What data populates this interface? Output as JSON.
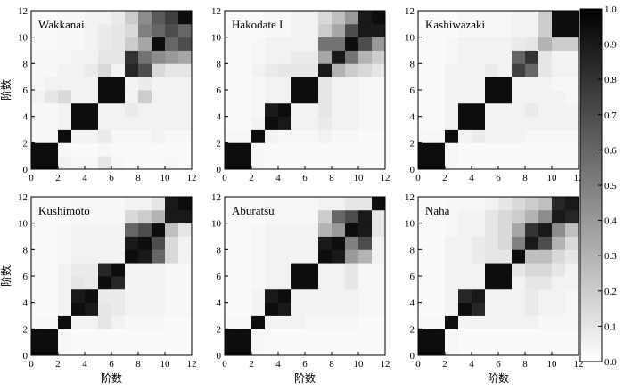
{
  "chart_data": {
    "type": "heatmap",
    "axis_label": "阶数",
    "x_ticks": [
      0,
      2,
      4,
      6,
      8,
      10,
      12
    ],
    "y_ticks": [
      0,
      2,
      4,
      6,
      8,
      10,
      12
    ],
    "xlim": [
      0,
      12
    ],
    "ylim": [
      0,
      12
    ],
    "colorbar": {
      "ticks": [
        "0.0",
        "0.1",
        "0.2",
        "0.3",
        "0.4",
        "0.5",
        "0.6",
        "0.7",
        "0.8",
        "0.9",
        "1.0"
      ],
      "range": [
        0,
        1
      ],
      "colormap": "white-to-black"
    },
    "panels": [
      {
        "title": "Wakkanai",
        "grid": [
          [
            0.95,
            0.95,
            0.05,
            0.03,
            0.03,
            0.1,
            0.03,
            0.02,
            0.02,
            0.02,
            0.03,
            0.02
          ],
          [
            0.95,
            0.95,
            0.03,
            0.02,
            0.02,
            0.03,
            0.02,
            0.02,
            0.02,
            0.02,
            0.02,
            0.02
          ],
          [
            0.03,
            0.03,
            0.95,
            0.05,
            0.05,
            0.08,
            0.03,
            0.03,
            0.03,
            0.05,
            0.03,
            0.03
          ],
          [
            0.03,
            0.03,
            0.05,
            0.95,
            0.95,
            0.05,
            0.05,
            0.05,
            0.05,
            0.05,
            0.05,
            0.05
          ],
          [
            0.03,
            0.03,
            0.05,
            0.95,
            0.95,
            0.05,
            0.05,
            0.08,
            0.05,
            0.05,
            0.05,
            0.05
          ],
          [
            0.05,
            0.1,
            0.15,
            0.05,
            0.05,
            0.95,
            0.95,
            0.05,
            0.2,
            0.05,
            0.05,
            0.05
          ],
          [
            0.03,
            0.05,
            0.05,
            0.05,
            0.05,
            0.95,
            0.95,
            0.05,
            0.08,
            0.05,
            0.05,
            0.05
          ],
          [
            0.03,
            0.03,
            0.05,
            0.05,
            0.08,
            0.15,
            0.05,
            0.85,
            0.7,
            0.15,
            0.1,
            0.1
          ],
          [
            0.03,
            0.03,
            0.03,
            0.05,
            0.05,
            0.1,
            0.1,
            0.8,
            0.55,
            0.45,
            0.4,
            0.35
          ],
          [
            0.02,
            0.02,
            0.03,
            0.03,
            0.05,
            0.08,
            0.1,
            0.2,
            0.35,
            0.95,
            0.6,
            0.7
          ],
          [
            0.02,
            0.02,
            0.03,
            0.03,
            0.05,
            0.08,
            0.1,
            0.15,
            0.5,
            0.6,
            0.7,
            0.6
          ],
          [
            0.02,
            0.02,
            0.03,
            0.03,
            0.05,
            0.05,
            0.08,
            0.2,
            0.45,
            0.65,
            0.75,
            0.95
          ]
        ]
      },
      {
        "title": "Hakodate I",
        "grid": [
          [
            0.95,
            0.95,
            0.03,
            0.02,
            0.02,
            0.02,
            0.02,
            0.02,
            0.02,
            0.02,
            0.02,
            0.02
          ],
          [
            0.95,
            0.95,
            0.03,
            0.02,
            0.02,
            0.02,
            0.02,
            0.02,
            0.02,
            0.02,
            0.02,
            0.02
          ],
          [
            0.03,
            0.03,
            0.95,
            0.05,
            0.03,
            0.03,
            0.03,
            0.05,
            0.03,
            0.03,
            0.02,
            0.02
          ],
          [
            0.02,
            0.02,
            0.05,
            0.95,
            0.9,
            0.05,
            0.05,
            0.08,
            0.05,
            0.05,
            0.03,
            0.03
          ],
          [
            0.02,
            0.02,
            0.03,
            0.9,
            0.95,
            0.05,
            0.05,
            0.1,
            0.05,
            0.05,
            0.03,
            0.03
          ],
          [
            0.02,
            0.02,
            0.03,
            0.05,
            0.05,
            0.95,
            0.95,
            0.1,
            0.05,
            0.05,
            0.03,
            0.03
          ],
          [
            0.02,
            0.02,
            0.03,
            0.05,
            0.05,
            0.95,
            0.95,
            0.1,
            0.05,
            0.05,
            0.03,
            0.03
          ],
          [
            0.02,
            0.02,
            0.05,
            0.08,
            0.1,
            0.1,
            0.1,
            0.9,
            0.3,
            0.2,
            0.15,
            0.1
          ],
          [
            0.02,
            0.02,
            0.03,
            0.05,
            0.05,
            0.08,
            0.08,
            0.35,
            0.9,
            0.55,
            0.3,
            0.2
          ],
          [
            0.02,
            0.02,
            0.03,
            0.05,
            0.05,
            0.05,
            0.05,
            0.55,
            0.55,
            0.95,
            0.7,
            0.4
          ],
          [
            0.02,
            0.02,
            0.02,
            0.03,
            0.03,
            0.05,
            0.05,
            0.2,
            0.35,
            0.7,
            0.9,
            0.9
          ],
          [
            0.02,
            0.02,
            0.02,
            0.03,
            0.03,
            0.05,
            0.05,
            0.15,
            0.25,
            0.4,
            0.9,
            0.95
          ]
        ]
      },
      {
        "title": "Kashiwazaki",
        "grid": [
          [
            0.95,
            0.95,
            0.03,
            0.02,
            0.02,
            0.02,
            0.02,
            0.02,
            0.02,
            0.02,
            0.02,
            0.02
          ],
          [
            0.95,
            0.95,
            0.03,
            0.02,
            0.02,
            0.02,
            0.02,
            0.02,
            0.02,
            0.02,
            0.02,
            0.02
          ],
          [
            0.03,
            0.03,
            0.95,
            0.05,
            0.08,
            0.05,
            0.05,
            0.05,
            0.03,
            0.03,
            0.03,
            0.03
          ],
          [
            0.02,
            0.02,
            0.05,
            0.95,
            0.95,
            0.05,
            0.05,
            0.05,
            0.05,
            0.05,
            0.05,
            0.05
          ],
          [
            0.02,
            0.02,
            0.05,
            0.95,
            0.95,
            0.05,
            0.05,
            0.05,
            0.08,
            0.05,
            0.05,
            0.05
          ],
          [
            0.02,
            0.02,
            0.05,
            0.05,
            0.05,
            0.95,
            0.95,
            0.05,
            0.05,
            0.05,
            0.05,
            0.03
          ],
          [
            0.02,
            0.02,
            0.05,
            0.05,
            0.05,
            0.95,
            0.95,
            0.05,
            0.05,
            0.05,
            0.03,
            0.03
          ],
          [
            0.02,
            0.02,
            0.05,
            0.05,
            0.05,
            0.08,
            0.05,
            0.75,
            0.6,
            0.1,
            0.05,
            0.05
          ],
          [
            0.02,
            0.02,
            0.03,
            0.05,
            0.05,
            0.05,
            0.05,
            0.6,
            0.8,
            0.1,
            0.05,
            0.05
          ],
          [
            0.02,
            0.02,
            0.03,
            0.05,
            0.05,
            0.05,
            0.05,
            0.08,
            0.1,
            0.3,
            0.2,
            0.2
          ],
          [
            0.02,
            0.02,
            0.02,
            0.03,
            0.03,
            0.03,
            0.03,
            0.05,
            0.05,
            0.2,
            0.95,
            0.95
          ],
          [
            0.02,
            0.02,
            0.02,
            0.03,
            0.03,
            0.03,
            0.03,
            0.05,
            0.05,
            0.2,
            0.95,
            0.95
          ]
        ]
      },
      {
        "title": "Kushimoto",
        "grid": [
          [
            0.95,
            0.95,
            0.03,
            0.02,
            0.02,
            0.02,
            0.02,
            0.02,
            0.02,
            0.02,
            0.02,
            0.02
          ],
          [
            0.95,
            0.95,
            0.03,
            0.02,
            0.02,
            0.02,
            0.02,
            0.02,
            0.02,
            0.02,
            0.02,
            0.02
          ],
          [
            0.03,
            0.03,
            0.95,
            0.05,
            0.05,
            0.1,
            0.05,
            0.03,
            0.03,
            0.03,
            0.02,
            0.02
          ],
          [
            0.02,
            0.02,
            0.05,
            0.95,
            0.9,
            0.1,
            0.08,
            0.05,
            0.05,
            0.05,
            0.03,
            0.03
          ],
          [
            0.02,
            0.02,
            0.05,
            0.9,
            0.95,
            0.08,
            0.08,
            0.05,
            0.05,
            0.05,
            0.03,
            0.03
          ],
          [
            0.02,
            0.02,
            0.05,
            0.1,
            0.08,
            0.95,
            0.85,
            0.05,
            0.05,
            0.05,
            0.03,
            0.03
          ],
          [
            0.02,
            0.02,
            0.05,
            0.08,
            0.08,
            0.85,
            0.95,
            0.05,
            0.05,
            0.05,
            0.03,
            0.03
          ],
          [
            0.02,
            0.02,
            0.03,
            0.05,
            0.05,
            0.05,
            0.05,
            0.95,
            0.9,
            0.6,
            0.15,
            0.05
          ],
          [
            0.02,
            0.02,
            0.03,
            0.05,
            0.05,
            0.05,
            0.05,
            0.9,
            0.95,
            0.7,
            0.15,
            0.05
          ],
          [
            0.02,
            0.02,
            0.03,
            0.05,
            0.05,
            0.05,
            0.05,
            0.6,
            0.7,
            0.95,
            0.25,
            0.1
          ],
          [
            0.02,
            0.02,
            0.02,
            0.03,
            0.03,
            0.03,
            0.03,
            0.15,
            0.2,
            0.3,
            0.9,
            0.9
          ],
          [
            0.02,
            0.02,
            0.02,
            0.03,
            0.03,
            0.03,
            0.03,
            0.05,
            0.05,
            0.1,
            0.9,
            0.95
          ]
        ]
      },
      {
        "title": "Aburatsu",
        "grid": [
          [
            0.95,
            0.95,
            0.03,
            0.02,
            0.02,
            0.02,
            0.02,
            0.02,
            0.02,
            0.02,
            0.02,
            0.02
          ],
          [
            0.95,
            0.95,
            0.03,
            0.02,
            0.02,
            0.02,
            0.02,
            0.02,
            0.02,
            0.02,
            0.02,
            0.02
          ],
          [
            0.03,
            0.03,
            0.95,
            0.05,
            0.05,
            0.05,
            0.03,
            0.03,
            0.03,
            0.03,
            0.02,
            0.02
          ],
          [
            0.02,
            0.02,
            0.05,
            0.95,
            0.9,
            0.05,
            0.05,
            0.05,
            0.05,
            0.05,
            0.03,
            0.03
          ],
          [
            0.02,
            0.02,
            0.05,
            0.9,
            0.95,
            0.05,
            0.05,
            0.05,
            0.05,
            0.05,
            0.03,
            0.03
          ],
          [
            0.02,
            0.02,
            0.03,
            0.05,
            0.05,
            0.95,
            0.95,
            0.05,
            0.05,
            0.1,
            0.03,
            0.03
          ],
          [
            0.02,
            0.02,
            0.03,
            0.05,
            0.05,
            0.95,
            0.95,
            0.05,
            0.05,
            0.1,
            0.03,
            0.03
          ],
          [
            0.02,
            0.02,
            0.03,
            0.05,
            0.05,
            0.05,
            0.05,
            0.95,
            0.9,
            0.4,
            0.3,
            0.05
          ],
          [
            0.02,
            0.02,
            0.03,
            0.05,
            0.05,
            0.05,
            0.05,
            0.9,
            0.95,
            0.5,
            0.7,
            0.05
          ],
          [
            0.02,
            0.02,
            0.03,
            0.05,
            0.05,
            0.05,
            0.05,
            0.3,
            0.4,
            0.95,
            0.9,
            0.1
          ],
          [
            0.02,
            0.02,
            0.02,
            0.03,
            0.03,
            0.03,
            0.03,
            0.2,
            0.6,
            0.7,
            0.9,
            0.1
          ],
          [
            0.02,
            0.02,
            0.02,
            0.03,
            0.03,
            0.03,
            0.03,
            0.05,
            0.05,
            0.1,
            0.1,
            0.95
          ]
        ]
      },
      {
        "title": "Naha",
        "grid": [
          [
            0.95,
            0.95,
            0.03,
            0.02,
            0.02,
            0.02,
            0.02,
            0.02,
            0.02,
            0.02,
            0.02,
            0.02
          ],
          [
            0.95,
            0.95,
            0.03,
            0.02,
            0.02,
            0.02,
            0.02,
            0.02,
            0.02,
            0.02,
            0.02,
            0.02
          ],
          [
            0.03,
            0.03,
            0.95,
            0.05,
            0.05,
            0.05,
            0.05,
            0.05,
            0.05,
            0.03,
            0.03,
            0.03
          ],
          [
            0.02,
            0.02,
            0.05,
            0.95,
            0.85,
            0.05,
            0.05,
            0.05,
            0.08,
            0.05,
            0.05,
            0.03
          ],
          [
            0.02,
            0.02,
            0.05,
            0.85,
            0.9,
            0.05,
            0.05,
            0.05,
            0.08,
            0.05,
            0.05,
            0.03
          ],
          [
            0.02,
            0.02,
            0.05,
            0.05,
            0.05,
            0.95,
            0.95,
            0.05,
            0.1,
            0.1,
            0.05,
            0.05
          ],
          [
            0.02,
            0.02,
            0.05,
            0.05,
            0.05,
            0.95,
            0.95,
            0.1,
            0.15,
            0.15,
            0.1,
            0.05
          ],
          [
            0.02,
            0.02,
            0.05,
            0.05,
            0.08,
            0.1,
            0.1,
            0.95,
            0.25,
            0.25,
            0.15,
            0.1
          ],
          [
            0.02,
            0.02,
            0.05,
            0.05,
            0.08,
            0.1,
            0.15,
            0.5,
            0.9,
            0.7,
            0.3,
            0.15
          ],
          [
            0.02,
            0.02,
            0.03,
            0.05,
            0.05,
            0.1,
            0.15,
            0.35,
            0.8,
            0.9,
            0.45,
            0.25
          ],
          [
            0.02,
            0.02,
            0.03,
            0.05,
            0.05,
            0.1,
            0.15,
            0.2,
            0.3,
            0.45,
            0.9,
            0.85
          ],
          [
            0.02,
            0.02,
            0.03,
            0.03,
            0.03,
            0.05,
            0.1,
            0.15,
            0.2,
            0.25,
            0.85,
            0.9
          ]
        ]
      }
    ]
  }
}
